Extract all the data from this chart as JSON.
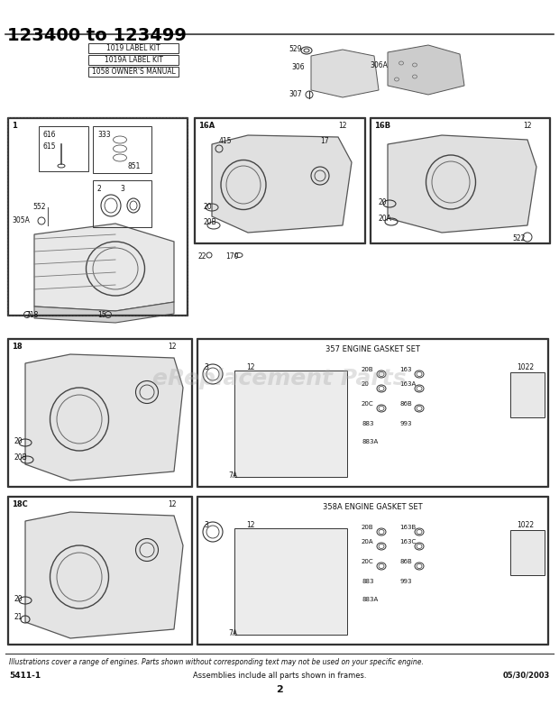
{
  "title": "123400 to 123499",
  "bg_color": "#ffffff",
  "page_number": "2",
  "left_label": "5411-1",
  "center_label": "Assemblies include all parts shown in frames.",
  "right_label": "05/30/2003",
  "italic_note": "Illustrations cover a range of engines. Parts shown without corresponding text may not be used on your specific engine.",
  "kit_labels": [
    "1019 LABEL KIT",
    "1019A LABEL KIT",
    "1058 OWNER'S MANUAL"
  ],
  "watermark": "eReplacement Parts",
  "diagram_image_placeholder": true
}
